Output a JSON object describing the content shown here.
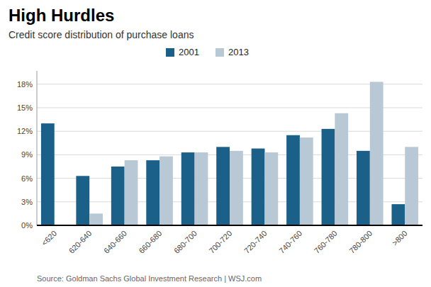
{
  "chart_data": {
    "type": "bar",
    "title": "High Hurdles",
    "subtitle": "Credit score distribution of purchase loans",
    "annotations": [
      "Source: Goldman Sachs Global Investment Research  |  WSJ.com"
    ],
    "categories": [
      "<620",
      "620-640",
      "640-660",
      "660-680",
      "680-700",
      "700-720",
      "720-740",
      "740-760",
      "760-780",
      "780-800",
      ">800"
    ],
    "series": [
      {
        "name": "2001",
        "color": "#1a6088",
        "values": [
          0.13,
          0.063,
          0.075,
          0.083,
          0.093,
          0.1,
          0.098,
          0.115,
          0.123,
          0.095,
          0.027
        ]
      },
      {
        "name": "2013",
        "color": "#b8c8d4",
        "values": [
          0.0,
          0.015,
          0.083,
          0.088,
          0.093,
          0.095,
          0.093,
          0.112,
          0.143,
          0.183,
          0.1
        ]
      }
    ],
    "ylim": [
      0,
      0.197
    ],
    "yticks": [
      {
        "value": 0,
        "label": "0%"
      },
      {
        "value": 0.03,
        "label": "3%"
      },
      {
        "value": 0.06,
        "label": "6%"
      },
      {
        "value": 0.09,
        "label": "9%"
      },
      {
        "value": 0.12,
        "label": "12%"
      },
      {
        "value": 0.15,
        "label": "15%"
      },
      {
        "value": 0.18,
        "label": "18%"
      }
    ],
    "grid": true,
    "legend": "top"
  }
}
